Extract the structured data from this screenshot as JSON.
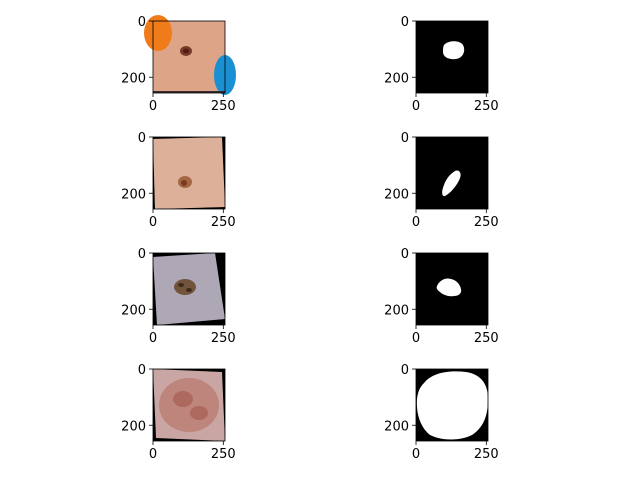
{
  "figure": {
    "panels": [
      {
        "name": "image-1",
        "kind": "photo",
        "skin": "#d99d7f",
        "lesion": "#7a3a28",
        "xticks": [
          "0",
          "250"
        ],
        "yticks": [
          "0",
          "200"
        ]
      },
      {
        "name": "mask-1",
        "kind": "mask",
        "xticks": [
          "0",
          "250"
        ],
        "yticks": [
          "0",
          "200"
        ]
      },
      {
        "name": "image-2",
        "kind": "photo",
        "skin": "#d9ab92",
        "lesion": "#9a5a36",
        "xticks": [
          "0",
          "250"
        ],
        "yticks": [
          "0",
          "200"
        ]
      },
      {
        "name": "mask-2",
        "kind": "mask",
        "xticks": [
          "0",
          "250"
        ],
        "yticks": [
          "0",
          "200"
        ]
      },
      {
        "name": "image-3",
        "kind": "photo",
        "skin": "#a7a0b0",
        "lesion": "#6b4a30",
        "xticks": [
          "0",
          "250"
        ],
        "yticks": [
          "0",
          "200"
        ]
      },
      {
        "name": "mask-3",
        "kind": "mask",
        "xticks": [
          "0",
          "250"
        ],
        "yticks": [
          "0",
          "200"
        ]
      },
      {
        "name": "image-4",
        "kind": "photo",
        "skin": "#c9a6a3",
        "lesion": "#b56a5e",
        "xticks": [
          "0",
          "250"
        ],
        "yticks": [
          "0",
          "200"
        ]
      },
      {
        "name": "mask-4",
        "kind": "mask",
        "xticks": [
          "0",
          "250"
        ],
        "yticks": [
          "0",
          "200"
        ]
      }
    ],
    "colors": {
      "background": "#ffffff",
      "mask_background": "#000000",
      "mask_foreground": "#ffffff",
      "sticker_orange": "#f07b1a",
      "sticker_blue": "#1a8fd1"
    }
  }
}
